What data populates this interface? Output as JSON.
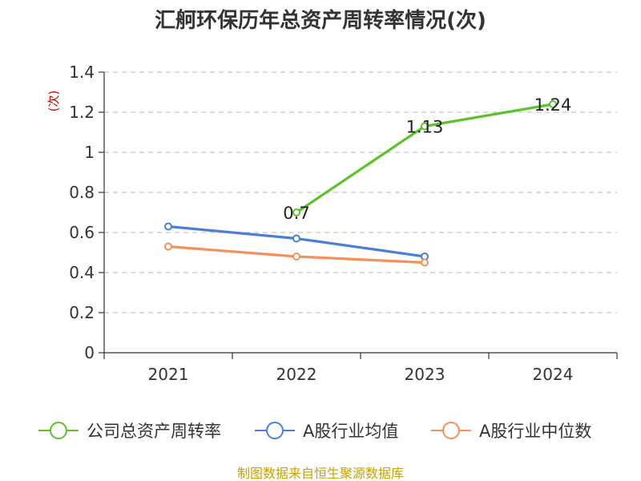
{
  "chart_data": {
    "type": "line",
    "title": "汇舸环保历年总资产周转率情况(次)",
    "ylabel": "(次)",
    "xlabel": "",
    "categories": [
      "2021",
      "2022",
      "2023",
      "2024"
    ],
    "ylim": [
      0,
      1.4
    ],
    "yticks": [
      0,
      0.2,
      0.4,
      0.6,
      0.8,
      1,
      1.2,
      1.4
    ],
    "ytick_labels": [
      "0",
      "0.2",
      "0.4",
      "0.6",
      "0.8",
      "1",
      "1.2",
      "1.4"
    ],
    "grid": true,
    "legend_position": "bottom",
    "series": [
      {
        "name": "公司总资产周转率",
        "color": "#5cc22a",
        "values": [
          null,
          0.7,
          1.13,
          1.24
        ],
        "data_labels": [
          null,
          "0.7",
          "1.13",
          "1.24"
        ]
      },
      {
        "name": "A股行业均值",
        "color": "#4a7fd6",
        "values": [
          0.63,
          0.57,
          0.48,
          null
        ],
        "data_labels": [
          null,
          null,
          null,
          null
        ]
      },
      {
        "name": "A股行业中位数",
        "color": "#f5905a",
        "values": [
          0.53,
          0.48,
          0.45,
          null
        ],
        "data_labels": [
          null,
          null,
          null,
          null
        ]
      }
    ],
    "source": "制图数据来自恒生聚源数据库"
  }
}
